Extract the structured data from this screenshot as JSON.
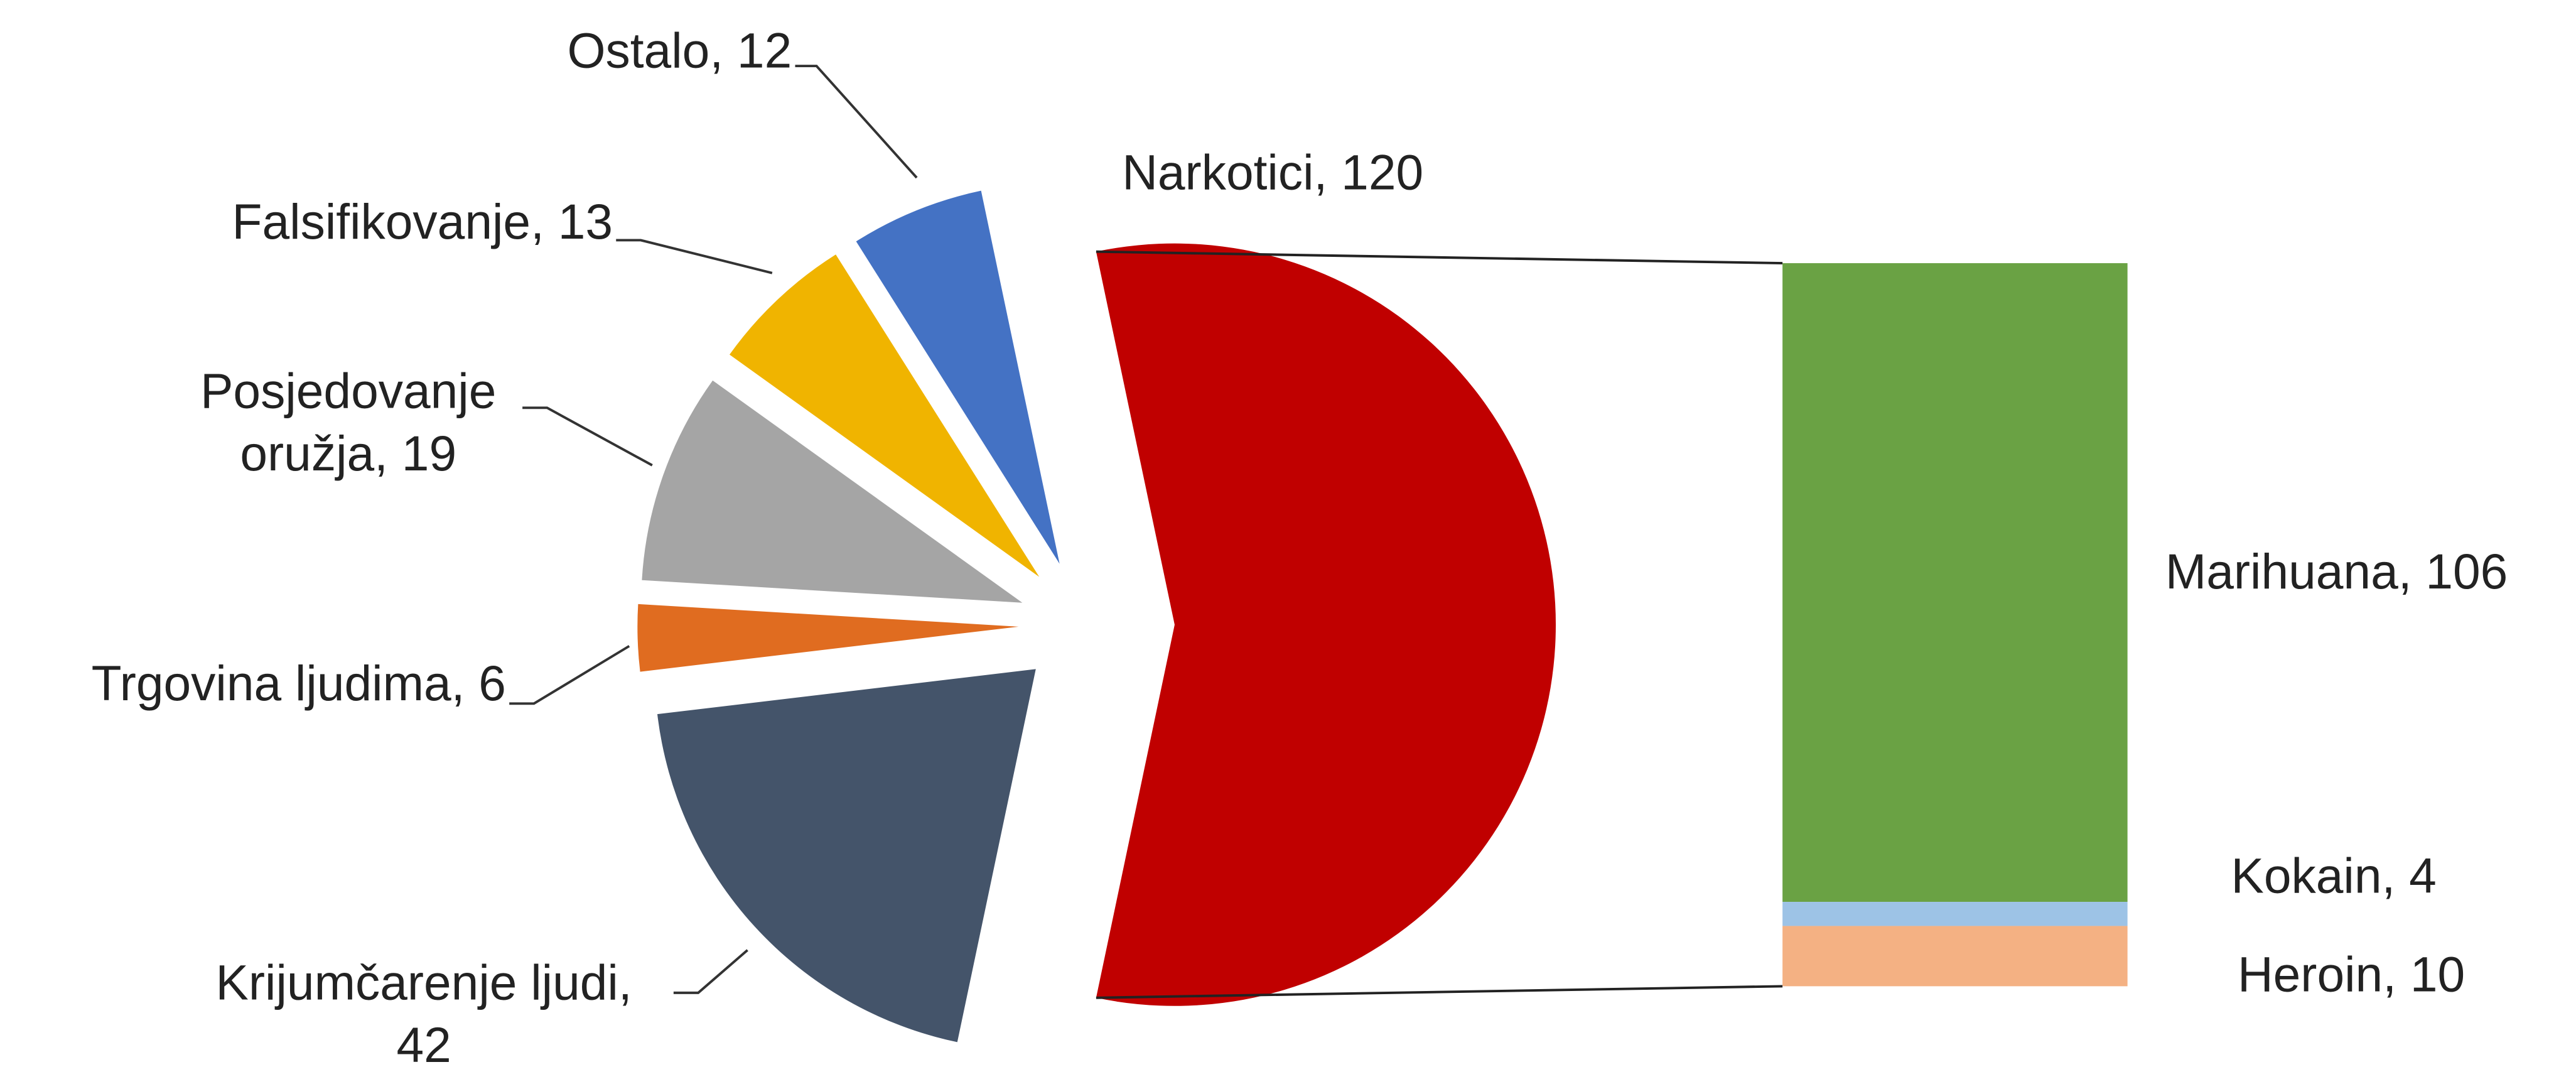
{
  "chart_data": {
    "type": "bar-of-pie",
    "pie": {
      "labels": [
        [
          "Narkotici, 120"
        ],
        [
          "Krijumčarenje ljudi,",
          "42"
        ],
        [
          "Trgovina ljudima, 6"
        ],
        [
          "Posjedovanje",
          "oružja, 19"
        ],
        [
          "Falsifikovanje, 13"
        ],
        [
          "Ostalo, 12"
        ]
      ],
      "values": [
        120,
        42,
        6,
        19,
        13,
        12
      ],
      "colors": [
        "#c00000",
        "#44546a",
        "#e06c20",
        "#a5a5a5",
        "#f0b400",
        "#4472c4"
      ]
    },
    "bar": {
      "labels": [
        [
          "Marihuana, 106"
        ],
        [
          "Kokain, 4"
        ],
        [
          "Heroin, 10"
        ]
      ],
      "values": [
        106,
        4,
        10
      ],
      "colors": [
        "#6aa244",
        "#9dc3e6",
        "#f4b183"
      ]
    }
  }
}
